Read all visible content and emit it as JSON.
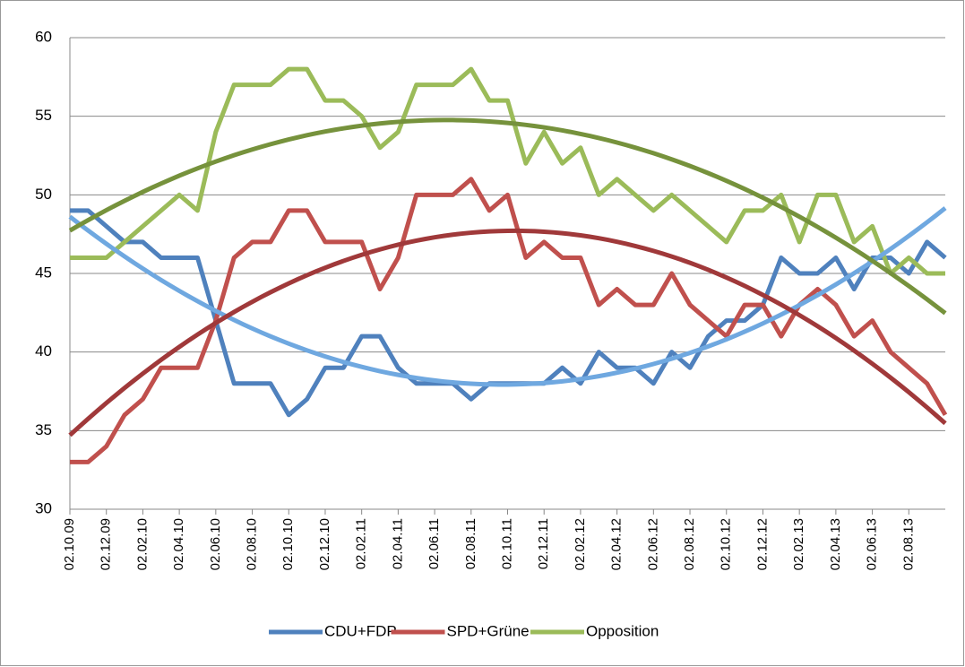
{
  "chart_data": {
    "type": "line",
    "categories": [
      "02.10.09",
      null,
      "02.12.09",
      null,
      "02.02.10",
      null,
      "02.04.10",
      null,
      "02.06.10",
      null,
      "02.08.10",
      null,
      "02.10.10",
      null,
      "02.12.10",
      null,
      "02.02.11",
      null,
      "02.04.11",
      null,
      "02.06.11",
      null,
      "02.08.11",
      null,
      "02.10.11",
      null,
      "02.12.11",
      null,
      "02.02.12",
      null,
      "02.04.12",
      null,
      "02.06.12",
      null,
      "02.08.12",
      null,
      "02.10.12",
      null,
      "02.12.12",
      null,
      "02.02.13",
      null,
      "02.04.13",
      null,
      "02.06.13",
      null,
      "02.08.13",
      null,
      null
    ],
    "series": [
      {
        "name": "CDU+FDP",
        "color": "#4f81bd",
        "trendline": {
          "type": "polynomial",
          "order": 2,
          "color": "#6fa8e0"
        },
        "values": [
          49,
          49,
          48,
          47,
          47,
          46,
          46,
          46,
          42,
          38,
          38,
          38,
          36,
          37,
          39,
          39,
          41,
          41,
          39,
          38,
          38,
          38,
          37,
          38,
          38,
          38,
          38,
          39,
          38,
          40,
          39,
          39,
          38,
          40,
          39,
          41,
          42,
          42,
          43,
          46,
          45,
          45,
          46,
          44,
          46,
          46,
          45,
          47,
          46
        ]
      },
      {
        "name": "SPD+Grüne",
        "color": "#c0504d",
        "trendline": {
          "type": "polynomial",
          "order": 2,
          "color": "#a0393a"
        },
        "values": [
          33,
          33,
          34,
          36,
          37,
          39,
          39,
          39,
          42,
          46,
          47,
          47,
          49,
          49,
          47,
          47,
          47,
          44,
          46,
          50,
          50,
          50,
          51,
          49,
          50,
          46,
          47,
          46,
          46,
          43,
          44,
          43,
          43,
          45,
          43,
          42,
          41,
          43,
          43,
          41,
          43,
          44,
          43,
          41,
          42,
          40,
          39,
          38,
          36
        ]
      },
      {
        "name": "Opposition",
        "color": "#9bbb59",
        "trendline": {
          "type": "polynomial",
          "order": 2,
          "color": "#76923c"
        },
        "values": [
          46,
          46,
          46,
          47,
          48,
          49,
          50,
          49,
          54,
          57,
          57,
          57,
          58,
          58,
          56,
          56,
          55,
          53,
          54,
          57,
          57,
          57,
          58,
          56,
          56,
          52,
          54,
          52,
          53,
          50,
          51,
          50,
          49,
          50,
          49,
          48,
          47,
          49,
          49,
          50,
          47,
          50,
          50,
          47,
          48,
          45,
          46,
          45,
          45
        ]
      }
    ],
    "ylim": [
      30,
      60
    ],
    "yticks": [
      30,
      35,
      40,
      45,
      50,
      55,
      60
    ],
    "grid": true,
    "legend": "bottom"
  }
}
